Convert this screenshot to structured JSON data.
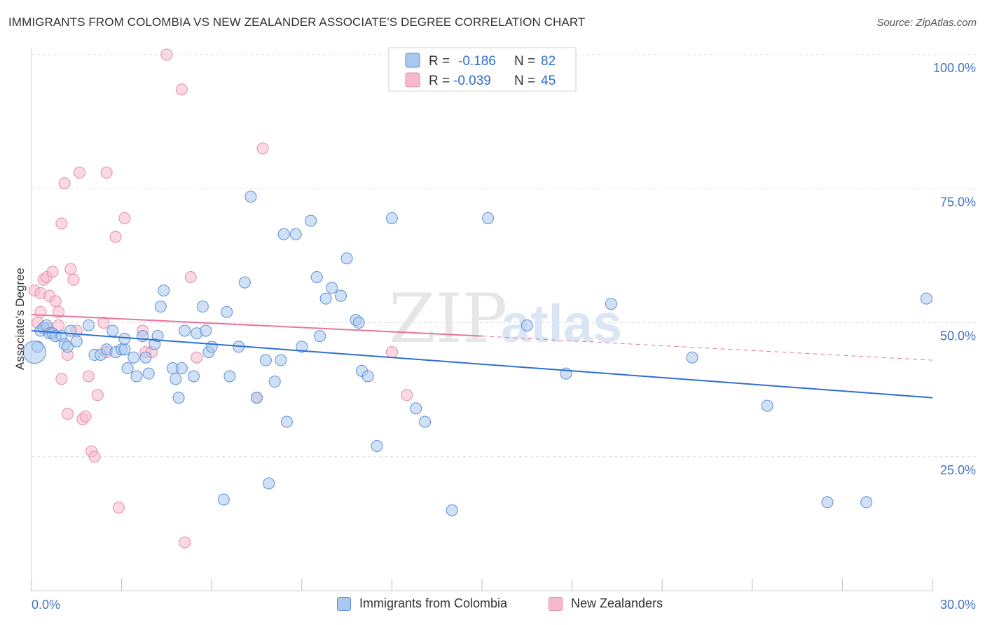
{
  "header": {
    "title": "IMMIGRANTS FROM COLOMBIA VS NEW ZEALANDER ASSOCIATE'S DEGREE CORRELATION CHART",
    "source": "Source: ZipAtlas.com"
  },
  "watermark": {
    "zip": "ZIP",
    "atlas": "atlas"
  },
  "colors": {
    "blue_fill": "#a9c8ee",
    "blue_stroke": "#5a8fd6",
    "blue_line": "#2f6fcf",
    "pink_fill": "#f6b9cc",
    "pink_stroke": "#e68aa8",
    "pink_line": "#e8759b",
    "tick_label": "#4472c4",
    "grid": "#dddddd"
  },
  "chart_data": {
    "type": "scatter",
    "title": "IMMIGRANTS FROM COLOMBIA VS NEW ZEALANDER ASSOCIATE'S DEGREE CORRELATION CHART",
    "xlabel": "",
    "ylabel": "Associate's Degree",
    "xlim": [
      0,
      30
    ],
    "ylim": [
      0,
      100
    ],
    "x_tick_labels": [
      "0.0%",
      "30.0%"
    ],
    "y_ticks": [
      25,
      50,
      75,
      100
    ],
    "y_tick_labels": [
      "25.0%",
      "50.0%",
      "75.0%",
      "100.0%"
    ],
    "grid": true,
    "legend_stats": [
      {
        "r_label": "R =",
        "r_value": "-0.186",
        "n_label": "N =",
        "n_value": "82"
      },
      {
        "r_label": "R =",
        "r_value": "-0.039",
        "n_label": "N =",
        "n_value": "45"
      }
    ],
    "series": [
      {
        "name": "Immigrants from Colombia",
        "color": "#a9c8ee",
        "trend": {
          "x": [
            0,
            30
          ],
          "y": [
            48.5,
            36.0
          ]
        },
        "points": [
          [
            0.2,
            45.5
          ],
          [
            0.3,
            48.5
          ],
          [
            0.4,
            49.0
          ],
          [
            0.5,
            49.5
          ],
          [
            0.6,
            48.0
          ],
          [
            0.7,
            48.0
          ],
          [
            0.8,
            47.5
          ],
          [
            1.0,
            47.5
          ],
          [
            1.1,
            46.0
          ],
          [
            1.2,
            45.5
          ],
          [
            1.3,
            48.5
          ],
          [
            1.5,
            46.5
          ],
          [
            1.9,
            49.5
          ],
          [
            2.1,
            44.0
          ],
          [
            2.3,
            44.0
          ],
          [
            2.5,
            45.0
          ],
          [
            2.7,
            48.5
          ],
          [
            2.8,
            44.5
          ],
          [
            3.0,
            45.0
          ],
          [
            3.1,
            45.0
          ],
          [
            3.1,
            47.0
          ],
          [
            3.2,
            41.5
          ],
          [
            3.4,
            43.5
          ],
          [
            3.5,
            40.0
          ],
          [
            3.7,
            47.5
          ],
          [
            3.8,
            43.5
          ],
          [
            3.9,
            40.5
          ],
          [
            4.1,
            46.0
          ],
          [
            4.2,
            47.5
          ],
          [
            4.3,
            53.0
          ],
          [
            4.4,
            56.0
          ],
          [
            4.7,
            41.5
          ],
          [
            4.8,
            39.5
          ],
          [
            4.9,
            36.0
          ],
          [
            5.0,
            41.5
          ],
          [
            5.1,
            48.5
          ],
          [
            5.4,
            40.0
          ],
          [
            5.5,
            48.0
          ],
          [
            5.7,
            53.0
          ],
          [
            5.8,
            48.5
          ],
          [
            5.9,
            44.5
          ],
          [
            6.0,
            45.5
          ],
          [
            6.4,
            17.0
          ],
          [
            6.5,
            52.0
          ],
          [
            6.6,
            40.0
          ],
          [
            6.9,
            45.5
          ],
          [
            7.1,
            57.5
          ],
          [
            7.3,
            73.5
          ],
          [
            7.5,
            36.0
          ],
          [
            7.8,
            43.0
          ],
          [
            7.9,
            20.0
          ],
          [
            8.1,
            39.0
          ],
          [
            8.3,
            43.0
          ],
          [
            8.4,
            66.5
          ],
          [
            8.5,
            31.5
          ],
          [
            8.8,
            66.5
          ],
          [
            9.0,
            45.5
          ],
          [
            9.3,
            69.0
          ],
          [
            9.5,
            58.5
          ],
          [
            9.6,
            47.5
          ],
          [
            9.8,
            54.5
          ],
          [
            10.0,
            56.5
          ],
          [
            10.3,
            55.0
          ],
          [
            10.5,
            62.0
          ],
          [
            10.8,
            50.5
          ],
          [
            10.9,
            50.0
          ],
          [
            11.0,
            41.0
          ],
          [
            11.2,
            40.0
          ],
          [
            11.5,
            27.0
          ],
          [
            12.0,
            69.5
          ],
          [
            12.8,
            34.0
          ],
          [
            13.1,
            31.5
          ],
          [
            14.0,
            15.0
          ],
          [
            15.2,
            69.5
          ],
          [
            16.5,
            49.5
          ],
          [
            17.8,
            40.5
          ],
          [
            19.3,
            53.5
          ],
          [
            22.0,
            43.5
          ],
          [
            24.5,
            34.5
          ],
          [
            26.5,
            16.5
          ],
          [
            27.8,
            16.5
          ],
          [
            29.8,
            54.5
          ]
        ]
      },
      {
        "name": "New Zealanders",
        "color": "#f6b9cc",
        "trend": {
          "x": [
            0,
            15
          ],
          "y": [
            51.5,
            47.5
          ],
          "dashed_to": [
            30,
            43.0
          ]
        },
        "points": [
          [
            0.1,
            56.0
          ],
          [
            0.2,
            50.0
          ],
          [
            0.3,
            52.0
          ],
          [
            0.3,
            55.5
          ],
          [
            0.4,
            58.0
          ],
          [
            0.5,
            58.5
          ],
          [
            0.6,
            55.0
          ],
          [
            0.7,
            59.5
          ],
          [
            0.8,
            54.0
          ],
          [
            0.9,
            49.5
          ],
          [
            0.9,
            52.0
          ],
          [
            1.0,
            68.5
          ],
          [
            1.0,
            39.5
          ],
          [
            1.1,
            76.0
          ],
          [
            1.2,
            44.0
          ],
          [
            1.3,
            60.0
          ],
          [
            1.4,
            58.0
          ],
          [
            1.5,
            48.5
          ],
          [
            1.6,
            78.0
          ],
          [
            1.7,
            32.0
          ],
          [
            1.8,
            32.5
          ],
          [
            1.9,
            40.0
          ],
          [
            2.0,
            26.0
          ],
          [
            2.1,
            25.0
          ],
          [
            2.2,
            36.5
          ],
          [
            2.4,
            50.0
          ],
          [
            2.5,
            78.0
          ],
          [
            2.8,
            66.0
          ],
          [
            2.9,
            15.5
          ],
          [
            3.1,
            69.5
          ],
          [
            3.7,
            48.5
          ],
          [
            3.8,
            44.5
          ],
          [
            4.5,
            100.0
          ],
          [
            5.0,
            93.5
          ],
          [
            5.1,
            9.0
          ],
          [
            5.3,
            58.5
          ],
          [
            5.5,
            43.5
          ],
          [
            7.5,
            36.0
          ],
          [
            7.7,
            82.5
          ],
          [
            12.0,
            44.5
          ],
          [
            12.5,
            36.5
          ],
          [
            4.0,
            44.5
          ],
          [
            2.5,
            44.5
          ],
          [
            1.2,
            33.0
          ],
          [
            0.5,
            49.0
          ]
        ]
      }
    ]
  },
  "legend_bottom": [
    "Immigrants from Colombia",
    "New Zealanders"
  ]
}
